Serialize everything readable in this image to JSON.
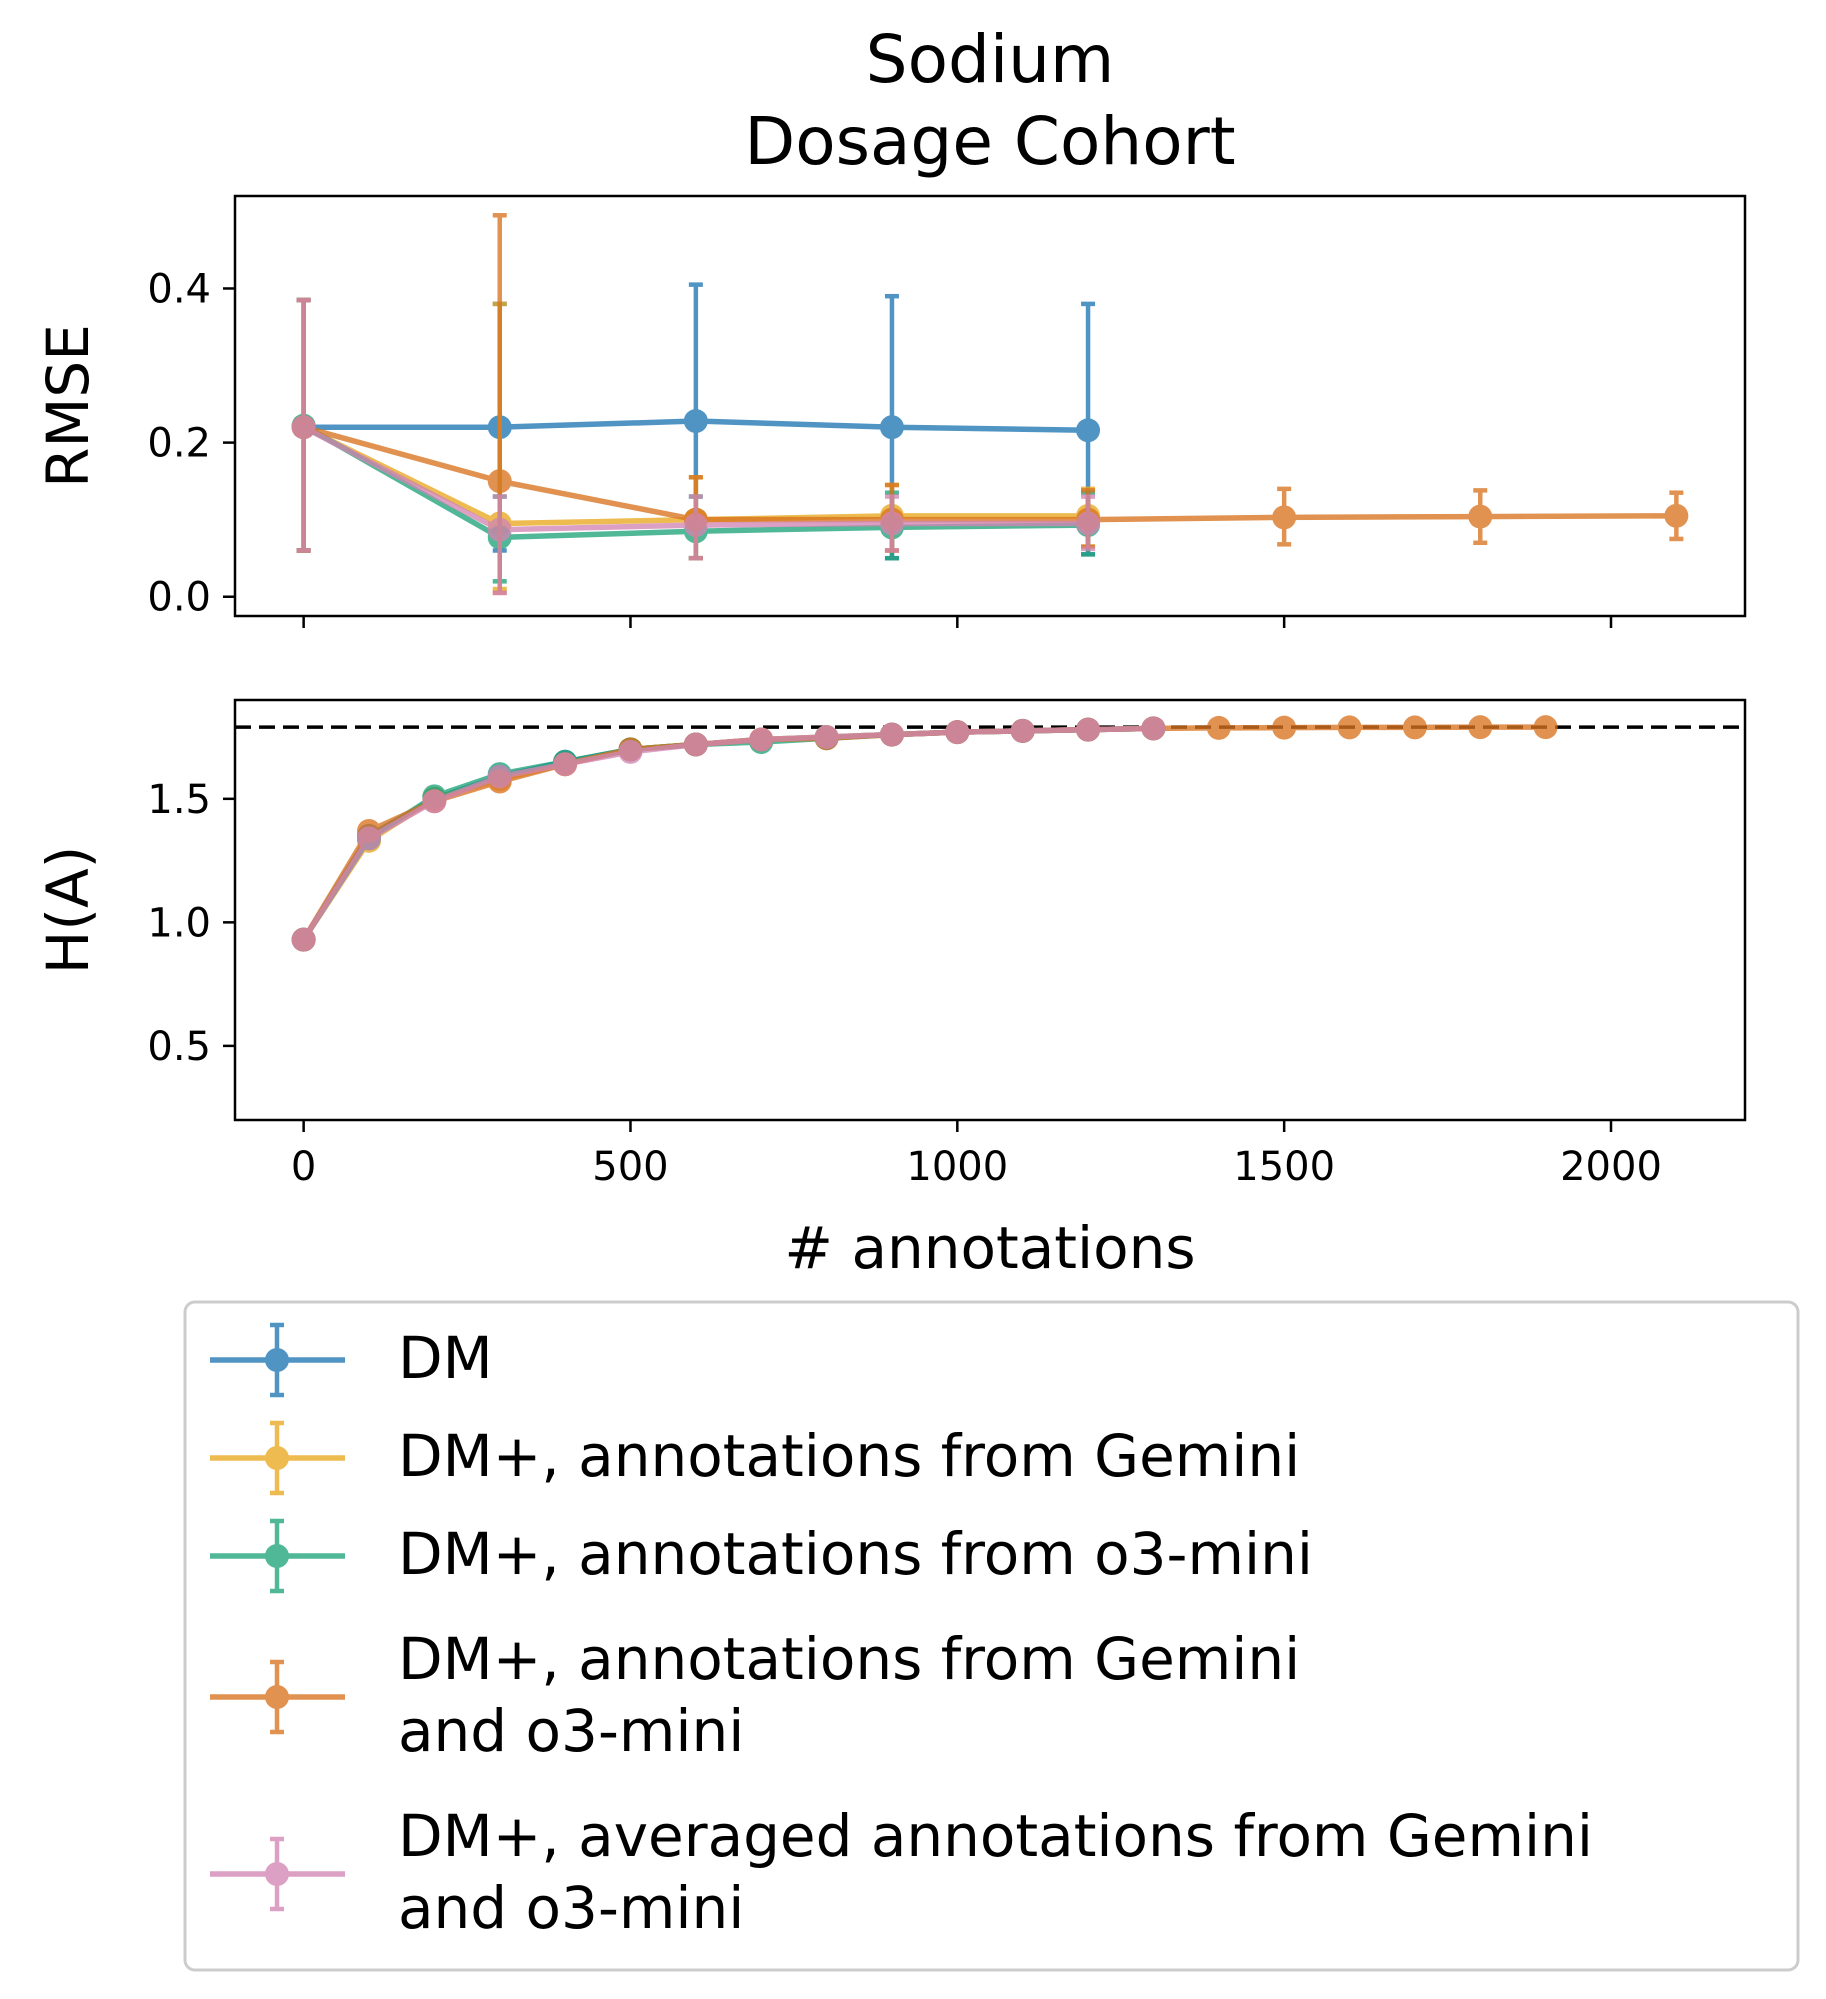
{
  "chart_data": [
    {
      "type": "line",
      "panel": "top",
      "title_lines": [
        "Sodium",
        "Dosage Cohort"
      ],
      "xlabel": "",
      "ylabel": "RMSE",
      "xlim": [
        -105,
        2205
      ],
      "ylim": [
        -0.025,
        0.52
      ],
      "yticks": [
        0.0,
        0.2,
        0.4
      ],
      "ytick_labels": [
        "0.0",
        "0.2",
        "0.4"
      ],
      "series": [
        {
          "name": "DM",
          "color": "#1f77b4",
          "x": [
            0,
            300,
            600,
            900,
            1200
          ],
          "y": [
            0.22,
            0.22,
            0.228,
            0.22,
            0.216
          ],
          "err_low": [
            0.06,
            0.06,
            0.05,
            0.05,
            0.055
          ],
          "err_high": [
            0.385,
            0.38,
            0.405,
            0.39,
            0.38
          ]
        },
        {
          "name": "DM+, annotations from Gemini",
          "color": "#e8a820",
          "x": [
            0,
            300,
            600,
            900,
            1200
          ],
          "y": [
            0.22,
            0.095,
            0.1,
            0.105,
            0.105
          ],
          "err_low": [
            0.06,
            0.01,
            0.05,
            0.06,
            0.065
          ],
          "err_high": [
            0.385,
            0.38,
            0.155,
            0.145,
            0.14
          ]
        },
        {
          "name": "DM+, annotations from o3-mini",
          "color": "#1fa37a",
          "x": [
            0,
            300,
            600,
            900,
            1200
          ],
          "y": [
            0.222,
            0.077,
            0.085,
            0.09,
            0.093
          ],
          "err_low": [
            0.06,
            0.02,
            0.05,
            0.05,
            0.055
          ],
          "err_high": [
            0.385,
            0.13,
            0.13,
            0.135,
            0.135
          ]
        },
        {
          "name": "DM+, annotations from Gemini\nand o3-mini",
          "color": "#d97420",
          "x": [
            0,
            300,
            600,
            900,
            1200,
            1500,
            1800,
            2100
          ],
          "y": [
            0.22,
            0.15,
            0.1,
            0.1,
            0.1,
            0.103,
            0.104,
            0.105
          ],
          "err_low": [
            0.06,
            0.005,
            0.05,
            0.06,
            0.065,
            0.068,
            0.07,
            0.075
          ],
          "err_high": [
            0.385,
            0.495,
            0.155,
            0.145,
            0.138,
            0.14,
            0.138,
            0.135
          ]
        },
        {
          "name": "DM+, averaged annotations from Gemini\nand o3-mini",
          "color": "#d286b4",
          "x": [
            0,
            300,
            600,
            900,
            1200
          ],
          "y": [
            0.22,
            0.087,
            0.093,
            0.095,
            0.095
          ],
          "err_low": [
            0.06,
            0.005,
            0.05,
            0.06,
            0.062
          ],
          "err_high": [
            0.385,
            0.13,
            0.13,
            0.13,
            0.13
          ]
        }
      ]
    },
    {
      "type": "line",
      "panel": "bottom",
      "xlabel": "# annotations",
      "ylabel": "H(A)",
      "xlim": [
        -105,
        2205
      ],
      "ylim": [
        0.2,
        1.9
      ],
      "xticks": [
        0,
        500,
        1000,
        1500,
        2000
      ],
      "xtick_labels": [
        "0",
        "500",
        "1000",
        "1500",
        "2000"
      ],
      "yticks": [
        0.5,
        1.0,
        1.5
      ],
      "ytick_labels": [
        "0.5",
        "1.0",
        "1.5"
      ],
      "reference_line": {
        "y": 1.79,
        "style": "dashed",
        "color": "#000000"
      },
      "series": [
        {
          "name": "DM",
          "color": "#1f77b4",
          "x": [
            0,
            100,
            200,
            300,
            400,
            500,
            600,
            700,
            800,
            900,
            1000,
            1100,
            1200,
            1300
          ],
          "y": [
            0.93,
            1.35,
            1.5,
            1.59,
            1.65,
            1.7,
            1.72,
            1.74,
            1.75,
            1.76,
            1.77,
            1.775,
            1.78,
            1.785
          ]
        },
        {
          "name": "DM+, annotations from Gemini",
          "color": "#e8a820",
          "x": [
            0,
            100,
            200,
            300,
            400,
            500,
            600,
            700,
            800,
            900,
            1000,
            1100,
            1200,
            1300
          ],
          "y": [
            0.93,
            1.33,
            1.5,
            1.58,
            1.64,
            1.7,
            1.72,
            1.74,
            1.75,
            1.76,
            1.77,
            1.775,
            1.78,
            1.785
          ]
        },
        {
          "name": "DM+, annotations from o3-mini",
          "color": "#1fa37a",
          "x": [
            0,
            100,
            200,
            300,
            400,
            500,
            600,
            700,
            800,
            900,
            1000,
            1100,
            1200,
            1300
          ],
          "y": [
            0.93,
            1.34,
            1.51,
            1.6,
            1.65,
            1.7,
            1.72,
            1.73,
            1.745,
            1.76,
            1.77,
            1.775,
            1.78,
            1.785
          ]
        },
        {
          "name": "DM+, annotations from Gemini\nand o3-mini",
          "color": "#d97420",
          "x": [
            0,
            100,
            200,
            300,
            400,
            500,
            600,
            700,
            800,
            900,
            1000,
            1100,
            1200,
            1300,
            1400,
            1500,
            1600,
            1700,
            1800,
            1900
          ],
          "y": [
            0.93,
            1.37,
            1.49,
            1.57,
            1.64,
            1.7,
            1.72,
            1.74,
            1.745,
            1.76,
            1.77,
            1.775,
            1.78,
            1.785,
            1.787,
            1.788,
            1.789,
            1.789,
            1.79,
            1.79
          ]
        },
        {
          "name": "DM+, averaged annotations from Gemini\nand o3-mini",
          "color": "#d286b4",
          "x": [
            0,
            100,
            200,
            300,
            400,
            500,
            600,
            700,
            800,
            900,
            1000,
            1100,
            1200,
            1300
          ],
          "y": [
            0.93,
            1.34,
            1.49,
            1.59,
            1.64,
            1.69,
            1.72,
            1.74,
            1.75,
            1.76,
            1.77,
            1.775,
            1.78,
            1.785
          ]
        }
      ]
    }
  ],
  "legend": {
    "position": "below",
    "entries": [
      {
        "lines": [
          "DM"
        ],
        "color": "#1f77b4"
      },
      {
        "lines": [
          "DM+, annotations from Gemini"
        ],
        "color": "#e8a820"
      },
      {
        "lines": [
          "DM+, annotations from o3-mini"
        ],
        "color": "#1fa37a"
      },
      {
        "lines": [
          "DM+, annotations from Gemini",
          "and o3-mini"
        ],
        "color": "#d97420"
      },
      {
        "lines": [
          "DM+, averaged annotations from Gemini",
          "and o3-mini"
        ],
        "color": "#d286b4"
      }
    ]
  }
}
